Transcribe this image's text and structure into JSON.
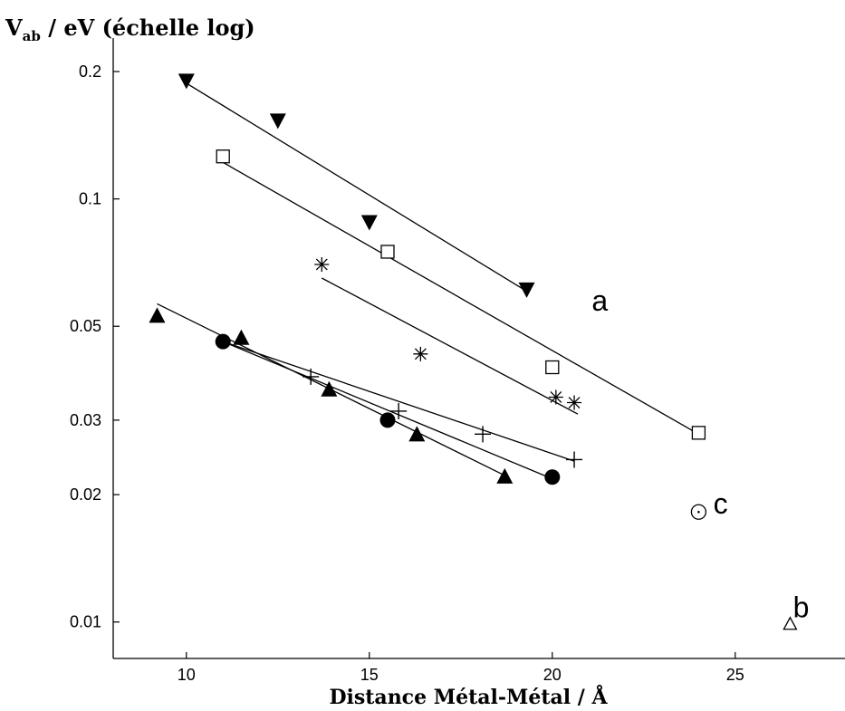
{
  "chart_data": {
    "type": "scatter",
    "title": "",
    "ylabel": {
      "main": "V",
      "sub": "ab",
      "rest": " / eV (échelle log)"
    },
    "xlabel": "Distance Métal-Métal / Å",
    "xlim": [
      8,
      28
    ],
    "ylim": [
      0.0082,
      0.24
    ],
    "yscale": "log",
    "grid": false,
    "xticks": [
      10,
      15,
      20,
      25
    ],
    "xtick_labels": [
      "10",
      "15",
      "20",
      "25"
    ],
    "yticks": [
      0.01,
      0.02,
      0.03,
      0.05,
      0.1,
      0.2
    ],
    "ytick_labels": [
      "0.01",
      "0.02",
      "0.03",
      "0.05",
      "0.1",
      "0.2"
    ],
    "series": [
      {
        "marker": "triangle-down-filled",
        "points": [
          [
            10.0,
            0.19
          ],
          [
            12.5,
            0.153
          ],
          [
            15.0,
            0.088
          ],
          [
            19.3,
            0.061
          ]
        ],
        "fit": [
          [
            9.9,
            0.19
          ],
          [
            19.3,
            0.0605
          ]
        ]
      },
      {
        "marker": "square-open",
        "points": [
          [
            11.0,
            0.126
          ],
          [
            15.5,
            0.075
          ],
          [
            20.0,
            0.04
          ],
          [
            24.0,
            0.028
          ]
        ],
        "fit": [
          [
            11.0,
            0.122
          ],
          [
            24.0,
            0.0278
          ]
        ]
      },
      {
        "marker": "asterisk",
        "points": [
          [
            13.7,
            0.07
          ],
          [
            16.4,
            0.043
          ],
          [
            20.1,
            0.034
          ],
          [
            20.6,
            0.033
          ]
        ],
        "fit": [
          [
            13.7,
            0.065
          ],
          [
            20.7,
            0.031
          ]
        ]
      },
      {
        "marker": "plus",
        "points": [
          [
            13.4,
            0.038
          ],
          [
            15.8,
            0.0315
          ],
          [
            18.1,
            0.0278
          ],
          [
            20.6,
            0.0242
          ]
        ],
        "fit": [
          [
            11.0,
            0.046
          ],
          [
            20.6,
            0.024
          ]
        ]
      },
      {
        "marker": "circle-filled",
        "points": [
          [
            11.0,
            0.046
          ],
          [
            15.5,
            0.03
          ],
          [
            20.0,
            0.022
          ]
        ],
        "fit": [
          [
            11.0,
            0.046
          ],
          [
            20.0,
            0.0218
          ]
        ]
      },
      {
        "marker": "triangle-up-filled",
        "points": [
          [
            9.2,
            0.053
          ],
          [
            11.5,
            0.047
          ],
          [
            13.9,
            0.0355
          ],
          [
            16.3,
            0.0278
          ],
          [
            18.7,
            0.0221
          ]
        ],
        "fit": [
          [
            9.2,
            0.0565
          ],
          [
            18.7,
            0.0222
          ]
        ]
      },
      {
        "marker": "circle-dot",
        "points": [
          [
            24.0,
            0.0182
          ]
        ]
      },
      {
        "marker": "triangle-up-open",
        "points": [
          [
            26.5,
            0.0099
          ]
        ]
      }
    ],
    "annotations": [
      {
        "text": "a",
        "x": 21.3,
        "y": 0.0567
      },
      {
        "text": "c",
        "x": 24.6,
        "y": 0.0188
      },
      {
        "text": "b",
        "x": 26.8,
        "y": 0.0107
      }
    ]
  }
}
